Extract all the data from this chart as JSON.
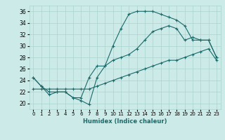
{
  "title": "",
  "xlabel": "Humidex (Indice chaleur)",
  "bg_color": "#cceae7",
  "grid_color": "#aad4d0",
  "line_color": "#1a6b6b",
  "xlim": [
    -0.5,
    23.5
  ],
  "ylim": [
    19,
    37
  ],
  "xticks": [
    0,
    1,
    2,
    3,
    4,
    5,
    6,
    7,
    8,
    9,
    10,
    11,
    12,
    13,
    14,
    15,
    16,
    17,
    18,
    19,
    20,
    21,
    22,
    23
  ],
  "yticks": [
    20,
    22,
    24,
    26,
    28,
    30,
    32,
    34,
    36
  ],
  "line1_x": [
    0,
    1,
    2,
    3,
    4,
    5,
    6,
    7,
    8,
    9,
    10,
    11,
    12,
    13,
    14,
    15,
    16,
    17,
    18,
    19,
    20,
    21,
    22,
    23
  ],
  "line1_y": [
    24.5,
    23.0,
    21.5,
    22.0,
    22.0,
    21.0,
    20.5,
    19.8,
    24.5,
    26.5,
    30.0,
    33.0,
    35.5,
    36.0,
    36.0,
    36.0,
    35.5,
    35.0,
    34.5,
    33.5,
    31.0,
    31.0,
    31.0,
    28.0
  ],
  "line2_x": [
    0,
    1,
    2,
    3,
    4,
    5,
    6,
    7,
    8,
    9,
    10,
    11,
    12,
    13,
    14,
    15,
    16,
    17,
    18,
    19,
    20,
    21,
    22,
    23
  ],
  "line2_y": [
    22.5,
    22.5,
    22.5,
    22.5,
    22.5,
    22.5,
    22.5,
    22.5,
    23.0,
    23.5,
    24.0,
    24.5,
    25.0,
    25.5,
    26.0,
    26.5,
    27.0,
    27.5,
    27.5,
    28.0,
    28.5,
    29.0,
    29.5,
    27.5
  ],
  "line3_x": [
    0,
    1,
    2,
    3,
    4,
    5,
    6,
    7,
    8,
    9,
    10,
    11,
    12,
    13,
    14,
    15,
    16,
    17,
    18,
    19,
    20,
    21,
    22,
    23
  ],
  "line3_y": [
    24.5,
    23.0,
    22.0,
    22.0,
    22.0,
    21.0,
    21.0,
    24.5,
    26.5,
    26.5,
    27.5,
    28.0,
    28.5,
    29.5,
    31.0,
    32.5,
    33.0,
    33.5,
    33.0,
    31.0,
    31.5,
    31.0,
    31.0,
    28.0
  ],
  "xlabel_fontsize": 6.0,
  "tick_fontsize": 5.0
}
